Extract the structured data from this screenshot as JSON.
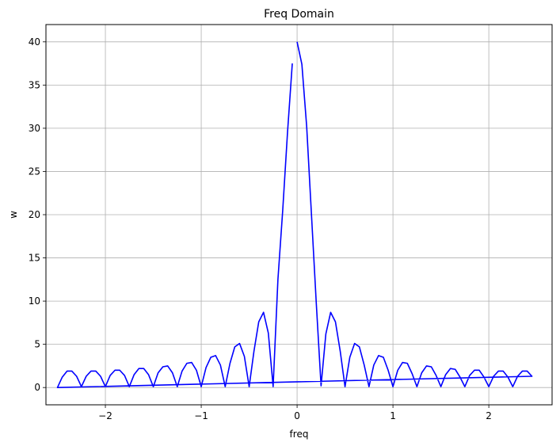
{
  "chart_data": {
    "type": "line",
    "title": "Freq Domain",
    "xlabel": "freq",
    "ylabel": "w",
    "xlim": [
      -2.62,
      2.66
    ],
    "ylim": [
      -2.0,
      42.0
    ],
    "grid": true,
    "x_ticks": [
      -2,
      -1,
      0,
      1,
      2
    ],
    "x_tick_labels": [
      "−2",
      "−1",
      "0",
      "1",
      "2"
    ],
    "y_ticks": [
      0,
      5,
      10,
      15,
      20,
      25,
      30,
      35,
      40
    ],
    "y_tick_labels": [
      "0",
      "5",
      "10",
      "15",
      "20",
      "25",
      "30",
      "35",
      "40"
    ],
    "series": [
      {
        "color": "#0000ff",
        "points": [
          [
            0.0,
            40.0
          ],
          [
            0.05,
            37.4
          ],
          [
            0.1,
            30.2
          ],
          [
            0.15,
            20.0
          ],
          [
            0.2,
            9.8
          ],
          [
            0.25,
            0.2
          ],
          [
            0.3,
            6.2
          ],
          [
            0.35,
            8.7
          ],
          [
            0.4,
            7.6
          ],
          [
            0.45,
            4.2
          ],
          [
            0.5,
            0.1
          ],
          [
            0.55,
            3.5
          ],
          [
            0.6,
            5.1
          ],
          [
            0.65,
            4.7
          ],
          [
            0.7,
            2.6
          ],
          [
            0.75,
            0.1
          ],
          [
            0.8,
            2.6
          ],
          [
            0.85,
            3.7
          ],
          [
            0.9,
            3.5
          ],
          [
            0.95,
            2.0
          ],
          [
            1.0,
            0.1
          ],
          [
            1.05,
            2.0
          ],
          [
            1.1,
            2.9
          ],
          [
            1.15,
            2.8
          ],
          [
            1.2,
            1.6
          ],
          [
            1.25,
            0.1
          ],
          [
            1.3,
            1.7
          ],
          [
            1.35,
            2.5
          ],
          [
            1.4,
            2.4
          ],
          [
            1.45,
            1.4
          ],
          [
            1.5,
            0.1
          ],
          [
            1.55,
            1.5
          ],
          [
            1.6,
            2.2
          ],
          [
            1.65,
            2.1
          ],
          [
            1.7,
            1.2
          ],
          [
            1.75,
            0.1
          ],
          [
            1.8,
            1.4
          ],
          [
            1.85,
            2.0
          ],
          [
            1.9,
            2.0
          ],
          [
            1.95,
            1.2
          ],
          [
            2.0,
            0.1
          ],
          [
            2.05,
            1.3
          ],
          [
            2.1,
            1.9
          ],
          [
            2.15,
            1.9
          ],
          [
            2.2,
            1.2
          ],
          [
            2.25,
            0.1
          ],
          [
            2.3,
            1.3
          ],
          [
            2.35,
            1.9
          ],
          [
            2.4,
            1.9
          ],
          [
            2.45,
            1.3
          ],
          [
            -2.5,
            0.0
          ],
          [
            -2.45,
            1.2
          ],
          [
            -2.4,
            1.9
          ],
          [
            -2.35,
            1.9
          ],
          [
            -2.3,
            1.3
          ],
          [
            -2.25,
            0.1
          ],
          [
            -2.2,
            1.3
          ],
          [
            -2.15,
            1.9
          ],
          [
            -2.1,
            1.9
          ],
          [
            -2.05,
            1.3
          ],
          [
            -2.0,
            0.1
          ],
          [
            -1.95,
            1.4
          ],
          [
            -1.9,
            2.0
          ],
          [
            -1.85,
            2.0
          ],
          [
            -1.8,
            1.4
          ],
          [
            -1.75,
            0.1
          ],
          [
            -1.7,
            1.5
          ],
          [
            -1.65,
            2.2
          ],
          [
            -1.6,
            2.2
          ],
          [
            -1.55,
            1.5
          ],
          [
            -1.5,
            0.1
          ],
          [
            -1.45,
            1.7
          ],
          [
            -1.4,
            2.4
          ],
          [
            -1.35,
            2.5
          ],
          [
            -1.3,
            1.7
          ],
          [
            -1.25,
            0.1
          ],
          [
            -1.2,
            1.9
          ],
          [
            -1.15,
            2.8
          ],
          [
            -1.1,
            2.9
          ],
          [
            -1.05,
            2.0
          ],
          [
            -1.0,
            0.1
          ],
          [
            -0.95,
            2.3
          ],
          [
            -0.9,
            3.5
          ],
          [
            -0.85,
            3.7
          ],
          [
            -0.8,
            2.6
          ],
          [
            -0.75,
            0.1
          ],
          [
            -0.7,
            2.8
          ],
          [
            -0.65,
            4.7
          ],
          [
            -0.6,
            5.1
          ],
          [
            -0.55,
            3.6
          ],
          [
            -0.5,
            0.1
          ],
          [
            -0.45,
            4.2
          ],
          [
            -0.4,
            7.6
          ],
          [
            -0.35,
            8.7
          ],
          [
            -0.3,
            6.3
          ],
          [
            -0.25,
            0.1
          ],
          [
            -0.2,
            12.5
          ],
          [
            -0.15,
            20.5
          ],
          [
            -0.1,
            29.5
          ],
          [
            -0.05,
            37.5
          ]
        ]
      }
    ]
  }
}
